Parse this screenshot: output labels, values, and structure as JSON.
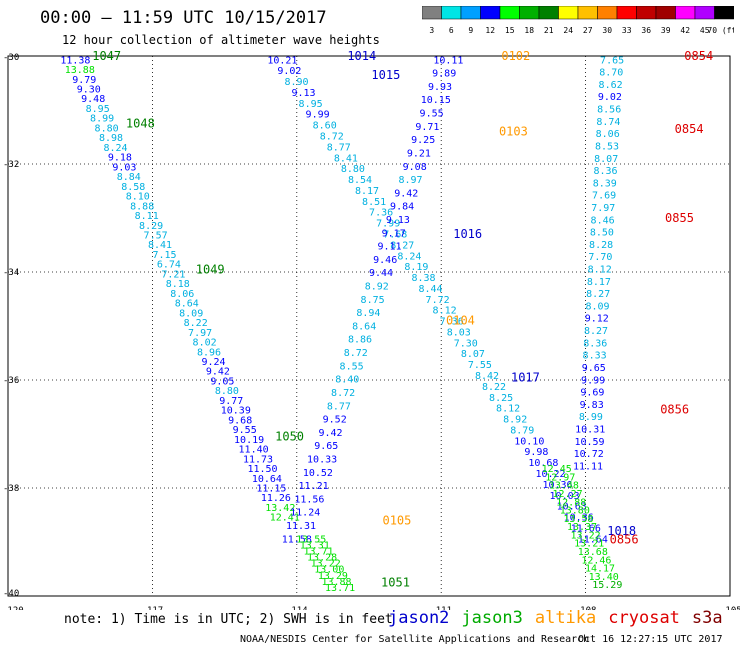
{
  "header": {
    "title": "00:00 – 11:59 UTC 10/15/2017",
    "subtitle": "12 hour collection of altimeter wave heights"
  },
  "color_scale": {
    "ticks": [
      "3",
      "6",
      "9",
      "12",
      "15",
      "18",
      "21",
      "24",
      "27",
      "30",
      "33",
      "36",
      "39",
      "42",
      "45",
      "70 (ft)"
    ],
    "colors": [
      "#808080",
      "#00e5e5",
      "#00a0ff",
      "#0000ff",
      "#00ff00",
      "#00b000",
      "#008000",
      "#ffff00",
      "#ffc000",
      "#ff8000",
      "#ff0000",
      "#c00000",
      "#a00000",
      "#ff00ff",
      "#b000ff",
      "#000000"
    ]
  },
  "footer": {
    "note": "note: 1) Time is in UTC; 2) SWH is in feet",
    "credit": "NOAA/NESDIS Center for Satellite Applications and Research",
    "timestamp": "Oct 16 12:27:15 UTC 2017"
  },
  "legend": [
    {
      "name": "jason2",
      "color": "#0000cc"
    },
    {
      "name": "jason3",
      "color": "#00aa00"
    },
    {
      "name": "altika",
      "color": "#ff9900"
    },
    {
      "name": "cryosat",
      "color": "#dd0000"
    },
    {
      "name": "s3a",
      "color": "#800000"
    }
  ],
  "chart_data": {
    "type": "scatter",
    "title": "00:00 – 11:59 UTC 10/15/2017",
    "subtitle": "12 hour collection of altimeter wave heights",
    "xlim": [
      -120,
      -105
    ],
    "ylim": [
      -40,
      -30
    ],
    "x_ticks": [
      -117,
      -114,
      -111,
      -108
    ],
    "x_tick_labels": [
      "-117",
      "-114",
      "-111",
      "-108"
    ],
    "x_edge_labels": [
      "-120",
      "-105"
    ],
    "y_ticks": [
      -32,
      -34,
      -36,
      -38
    ],
    "y_tick_labels": [
      "-32",
      "-34",
      "-36",
      "-38"
    ],
    "y_edge_labels": [
      "-30",
      "-40"
    ],
    "grid": true,
    "units": "ft",
    "value_colors": {
      "lt9": "#00b0e0",
      "lt12": "#0000ff",
      "lt15": "#00e000",
      "lt18": "#00b000"
    },
    "tracks": [
      {
        "sat": "jason3",
        "dir": -1,
        "x0": -118.6,
        "y0": -30.08,
        "x1": -114.25,
        "y1": -38.55,
        "values": [
          11.38,
          13.88,
          9.79,
          9.3,
          9.48,
          8.95,
          8.99,
          8.8,
          8.98,
          8.24,
          9.18,
          9.03,
          8.84,
          8.58,
          8.1,
          8.88,
          8.11,
          8.29,
          7.57,
          8.41,
          7.15,
          6.74,
          7.21,
          8.18,
          8.06,
          8.64,
          8.09,
          8.22,
          7.97,
          8.02,
          8.96,
          9.24,
          9.42,
          9.05,
          8.8,
          9.77,
          10.39,
          9.68,
          9.55,
          10.19,
          11.4,
          11.73,
          11.5,
          10.64,
          11.15,
          11.26,
          13.42,
          12.41
        ]
      },
      {
        "sat": "jason2",
        "dir": 1,
        "x0": -114.3,
        "y0": -30.08,
        "x1": -107.85,
        "y1": -38.95,
        "values": [
          10.21,
          9.02,
          8.9,
          9.13,
          8.95,
          9.99,
          8.6,
          8.72,
          8.77,
          8.41,
          8.8,
          8.54,
          8.17,
          8.51,
          7.36,
          7.99,
          7.68,
          8.27,
          8.24,
          8.19,
          8.38,
          8.44,
          7.72,
          8.12,
          7.36,
          8.03,
          7.3,
          8.07,
          7.55,
          8.42,
          8.22,
          8.25,
          8.12,
          8.92,
          8.79,
          10.1,
          9.98,
          10.68,
          10.22,
          10.36,
          10.03,
          10.63,
          10.36,
          11.66,
          11.64
        ]
      },
      {
        "sat": "jason2",
        "dir": -1,
        "x0": -110.85,
        "y0": -30.08,
        "x1": -114.0,
        "y1": -38.95,
        "values": [
          10.11,
          9.89,
          9.93,
          10.15,
          9.55,
          9.71,
          9.25,
          9.21,
          9.08,
          8.97,
          9.42,
          9.84,
          9.13,
          9.17,
          9.11,
          9.46,
          9.44,
          8.92,
          8.75,
          8.94,
          8.64,
          8.86,
          8.72,
          8.55,
          8.4,
          8.72,
          8.77,
          9.52,
          9.42,
          9.65,
          10.33,
          10.52,
          11.21,
          11.56,
          11.24,
          11.31,
          11.58
        ]
      },
      {
        "sat": "jason3",
        "dir": -1,
        "x0": -113.7,
        "y0": -38.95,
        "x1": -113.1,
        "y1": -39.85,
        "values": [
          13.55,
          13.31,
          13.71,
          13.28,
          13.22,
          13.0,
          13.29,
          13.88,
          13.71
        ]
      },
      {
        "sat": "jason3",
        "dir": 1,
        "x0": -108.6,
        "y0": -37.65,
        "x1": -107.55,
        "y1": -39.8,
        "values": [
          12.45,
          12.97,
          13.48,
          12.27,
          12.88,
          13.8,
          13.58,
          13.37,
          13.22,
          13.21,
          13.68,
          12.46,
          14.17,
          13.4,
          15.29
        ]
      },
      {
        "sat": "altika",
        "dir": 1,
        "x0": -107.45,
        "y0": -30.08,
        "x1": -107.95,
        "y1": -37.6,
        "values": [
          7.65,
          8.7,
          8.62,
          9.02,
          8.56,
          8.74,
          8.06,
          8.53,
          8.07,
          8.36,
          8.39,
          7.69,
          7.97,
          8.46,
          8.5,
          8.28,
          7.7,
          8.12,
          8.17,
          8.27,
          8.09,
          9.12,
          8.27,
          8.36,
          8.33,
          9.65,
          9.99,
          9.69,
          9.83,
          8.99,
          10.31,
          10.59,
          10.72,
          11.11
        ]
      }
    ],
    "labels": [
      {
        "text": "1047",
        "x": -118.25,
        "y": -30.0,
        "color": "#008000"
      },
      {
        "text": "1048",
        "x": -117.55,
        "y": -31.25,
        "color": "#008000"
      },
      {
        "text": "1049",
        "x": -116.1,
        "y": -33.95,
        "color": "#008000"
      },
      {
        "text": "1050",
        "x": -114.45,
        "y": -37.05,
        "color": "#008000"
      },
      {
        "text": "1051",
        "x": -112.25,
        "y": -39.75,
        "color": "#008000"
      },
      {
        "text": "1014",
        "x": -112.95,
        "y": -30.0,
        "color": "#0000cc"
      },
      {
        "text": "1015",
        "x": -112.45,
        "y": -30.35,
        "color": "#0000cc"
      },
      {
        "text": "1016",
        "x": -110.75,
        "y": -33.3,
        "color": "#0000cc"
      },
      {
        "text": "1017",
        "x": -109.55,
        "y": -35.95,
        "color": "#0000cc"
      },
      {
        "text": "1018",
        "x": -107.55,
        "y": -38.8,
        "color": "#0000cc"
      },
      {
        "text": "0102",
        "x": -109.75,
        "y": -30.0,
        "color": "#ff9900"
      },
      {
        "text": "0103",
        "x": -109.8,
        "y": -31.4,
        "color": "#ff9900"
      },
      {
        "text": "0104",
        "x": -110.9,
        "y": -34.9,
        "color": "#ff9900"
      },
      {
        "text": "0105",
        "x": -112.22,
        "y": -38.6,
        "color": "#ff9900"
      },
      {
        "text": "0854",
        "x": -105.95,
        "y": -30.0,
        "color": "#dd0000"
      },
      {
        "text": "0854",
        "x": -106.15,
        "y": -31.35,
        "color": "#dd0000"
      },
      {
        "text": "0855",
        "x": -106.35,
        "y": -33.0,
        "color": "#dd0000"
      },
      {
        "text": "0856",
        "x": -106.45,
        "y": -36.55,
        "color": "#dd0000"
      },
      {
        "text": "0856",
        "x": -107.5,
        "y": -38.95,
        "color": "#dd0000"
      }
    ]
  }
}
